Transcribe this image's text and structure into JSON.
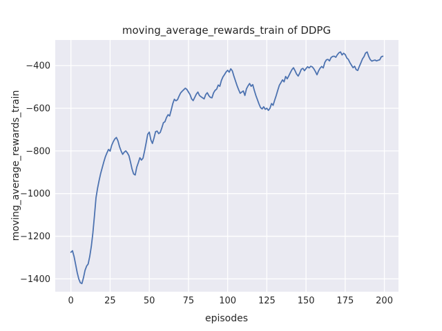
{
  "figure": {
    "title": "moving_average_rewards_train of DDPG",
    "xlabel": "episodes",
    "ylabel": "moving_average_rewards_train"
  },
  "chart_data": {
    "type": "line",
    "title": "moving_average_rewards_train of DDPG",
    "xlabel": "episodes",
    "ylabel": "moving_average_rewards_train",
    "xlim": [
      -10,
      209
    ],
    "ylim": [
      -1460,
      -280
    ],
    "x_ticks": [
      0,
      25,
      50,
      75,
      100,
      125,
      150,
      175,
      200
    ],
    "x_tick_labels": [
      "0",
      "25",
      "50",
      "75",
      "100",
      "125",
      "150",
      "175",
      "200"
    ],
    "y_ticks": [
      -1400,
      -1200,
      -1000,
      -800,
      -600,
      -400
    ],
    "y_tick_labels": [
      "−1400",
      "−1200",
      "−1000",
      "−800",
      "−600",
      "−400"
    ],
    "grid": true,
    "legend": "none",
    "style": {
      "fig_bg": "#ffffff",
      "plot_bg": "#eaeaf2",
      "grid_color": "#ffffff",
      "line_color": "#4c72b0",
      "text_color": "#262626",
      "line_width": 1.8
    },
    "series": [
      {
        "name": "moving_average_rewards_train",
        "x_start": 0,
        "x_step": 1,
        "values": [
          -1275,
          -1268,
          -1295,
          -1332,
          -1370,
          -1400,
          -1418,
          -1422,
          -1395,
          -1360,
          -1340,
          -1330,
          -1295,
          -1248,
          -1185,
          -1105,
          -1020,
          -975,
          -938,
          -905,
          -878,
          -851,
          -827,
          -809,
          -793,
          -801,
          -774,
          -757,
          -744,
          -737,
          -753,
          -780,
          -800,
          -816,
          -806,
          -800,
          -809,
          -822,
          -852,
          -885,
          -908,
          -913,
          -876,
          -855,
          -832,
          -843,
          -834,
          -800,
          -762,
          -722,
          -712,
          -748,
          -765,
          -740,
          -710,
          -707,
          -719,
          -713,
          -692,
          -668,
          -663,
          -643,
          -630,
          -636,
          -608,
          -578,
          -558,
          -565,
          -560,
          -543,
          -528,
          -520,
          -513,
          -506,
          -512,
          -524,
          -536,
          -556,
          -564,
          -549,
          -534,
          -524,
          -540,
          -546,
          -551,
          -556,
          -536,
          -527,
          -541,
          -549,
          -551,
          -528,
          -516,
          -510,
          -491,
          -497,
          -470,
          -453,
          -442,
          -430,
          -422,
          -431,
          -415,
          -425,
          -450,
          -472,
          -494,
          -513,
          -530,
          -524,
          -519,
          -540,
          -509,
          -495,
          -484,
          -497,
          -489,
          -516,
          -540,
          -560,
          -580,
          -597,
          -603,
          -593,
          -605,
          -600,
          -610,
          -600,
          -578,
          -586,
          -562,
          -540,
          -515,
          -492,
          -480,
          -467,
          -476,
          -451,
          -462,
          -448,
          -433,
          -419,
          -410,
          -424,
          -440,
          -449,
          -435,
          -417,
          -413,
          -424,
          -414,
          -405,
          -411,
          -403,
          -406,
          -415,
          -428,
          -443,
          -425,
          -412,
          -404,
          -411,
          -385,
          -373,
          -371,
          -378,
          -362,
          -357,
          -356,
          -361,
          -349,
          -340,
          -336,
          -350,
          -342,
          -348,
          -364,
          -371,
          -386,
          -398,
          -410,
          -403,
          -419,
          -423,
          -404,
          -387,
          -369,
          -358,
          -341,
          -336,
          -357,
          -372,
          -379,
          -376,
          -374,
          -378,
          -375,
          -373,
          -359,
          -356
        ]
      }
    ]
  }
}
